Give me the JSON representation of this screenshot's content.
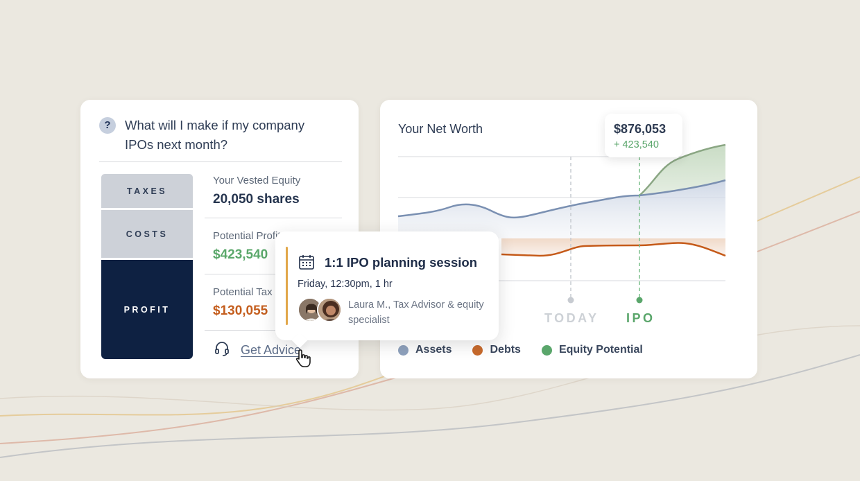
{
  "question": {
    "icon": "question-circle-icon",
    "text": "What will I make if my company IPOs next month?"
  },
  "breakdown": {
    "blocks": [
      {
        "label": "TAXES",
        "color": "#cdd1d8"
      },
      {
        "label": "COSTS",
        "color": "#cdd1d8"
      },
      {
        "label": "PROFIT",
        "color": "#0e2142"
      }
    ]
  },
  "metrics": {
    "equity": {
      "label": "Your Vested Equity",
      "value": "20,050 shares"
    },
    "profit": {
      "label": "Potential Profit",
      "value": "$423,540",
      "color": "#5ba86b"
    },
    "tax": {
      "label": "Potential Tax",
      "value": "$130,055",
      "color": "#c45e1e"
    }
  },
  "advice": {
    "icon": "headset-icon",
    "label": "Get Advice"
  },
  "session": {
    "icon": "calendar-icon",
    "title": "1:1 IPO planning session",
    "time": "Friday, 12:30pm, 1 hr",
    "advisor": "Laura M., Tax Advisor & equity specialist"
  },
  "chart_data": {
    "type": "area",
    "title": "Your Net Worth",
    "tooltip": {
      "value": "$876,053",
      "delta": "+ 423,540"
    },
    "markers": [
      {
        "label": "TODAY",
        "color": "#cdd1d6"
      },
      {
        "label": "IPO",
        "color": "#5aa66b"
      }
    ],
    "legend": [
      {
        "name": "Assets",
        "color": "#8ea1bd"
      },
      {
        "name": "Debts",
        "color": "#c86a2c"
      },
      {
        "name": "Equity Potential",
        "color": "#5aa66b"
      }
    ],
    "grid": true,
    "colors": {
      "assets": "#7a90b2",
      "debts": "#c55a19",
      "equity": "#8aa683"
    }
  }
}
